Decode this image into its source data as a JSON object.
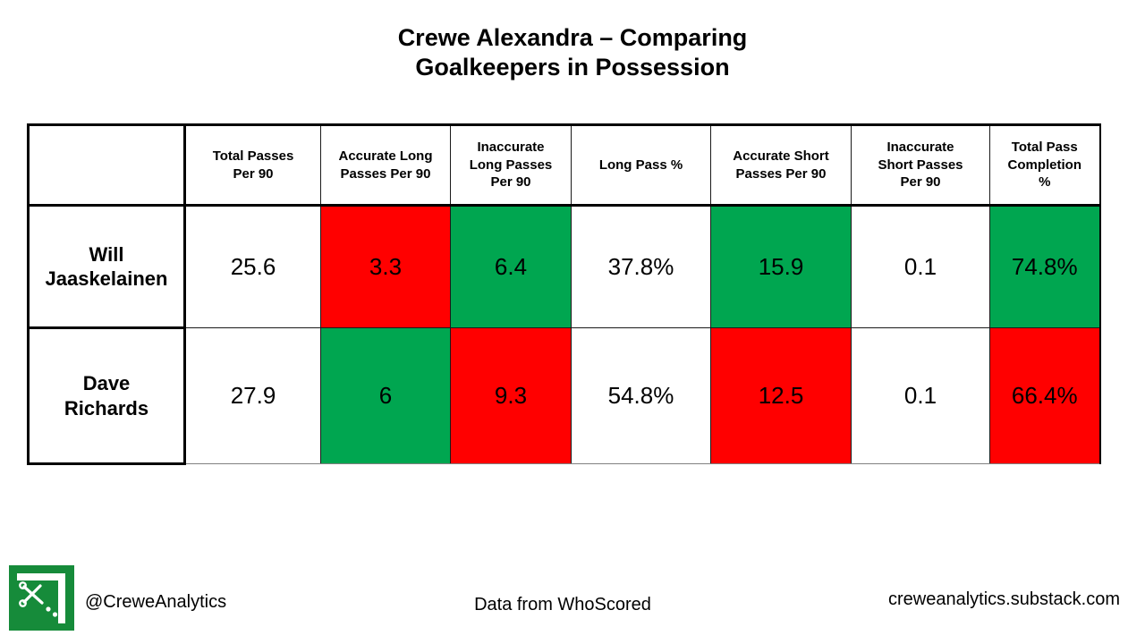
{
  "title": {
    "line1": "Crewe Alexandra – Comparing",
    "line2": "Goalkeepers in Possession"
  },
  "colors": {
    "positive_cell": "#00A650",
    "negative_cell": "#FF0000",
    "neutral_cell": "#FFFFFF",
    "logo_green": "#168B3A",
    "border": "#000000",
    "text": "#000000"
  },
  "chart_data": {
    "type": "table",
    "title": "Crewe Alexandra – Comparing Goalkeepers in Possession",
    "columns": [
      "",
      "Total Passes\nPer 90",
      "Accurate Long\nPasses Per 90",
      "Inaccurate\nLong Passes\nPer 90",
      "Long Pass %",
      "Accurate Short\nPasses Per 90",
      "Inaccurate\nShort Passes\nPer 90",
      "Total Pass\nCompletion\n%"
    ],
    "rows": [
      {
        "name": "Will\nJaaskelainen",
        "cells": [
          {
            "value": "25.6",
            "highlight": "neutral"
          },
          {
            "value": "3.3",
            "highlight": "negative"
          },
          {
            "value": "6.4",
            "highlight": "positive"
          },
          {
            "value": "37.8%",
            "highlight": "neutral"
          },
          {
            "value": "15.9",
            "highlight": "positive"
          },
          {
            "value": "0.1",
            "highlight": "neutral"
          },
          {
            "value": "74.8%",
            "highlight": "positive"
          }
        ]
      },
      {
        "name": "Dave\nRichards",
        "cells": [
          {
            "value": "27.9",
            "highlight": "neutral"
          },
          {
            "value": "6",
            "highlight": "positive"
          },
          {
            "value": "9.3",
            "highlight": "negative"
          },
          {
            "value": "54.8%",
            "highlight": "neutral"
          },
          {
            "value": "12.5",
            "highlight": "negative"
          },
          {
            "value": "0.1",
            "highlight": "neutral"
          },
          {
            "value": "66.4%",
            "highlight": "negative"
          }
        ]
      }
    ]
  },
  "footer": {
    "handle": "@CreweAnalytics",
    "source": "Data from WhoScored",
    "website": "creweanalytics.substack.com",
    "logo_icon": "scissors-cut-corner-icon"
  }
}
